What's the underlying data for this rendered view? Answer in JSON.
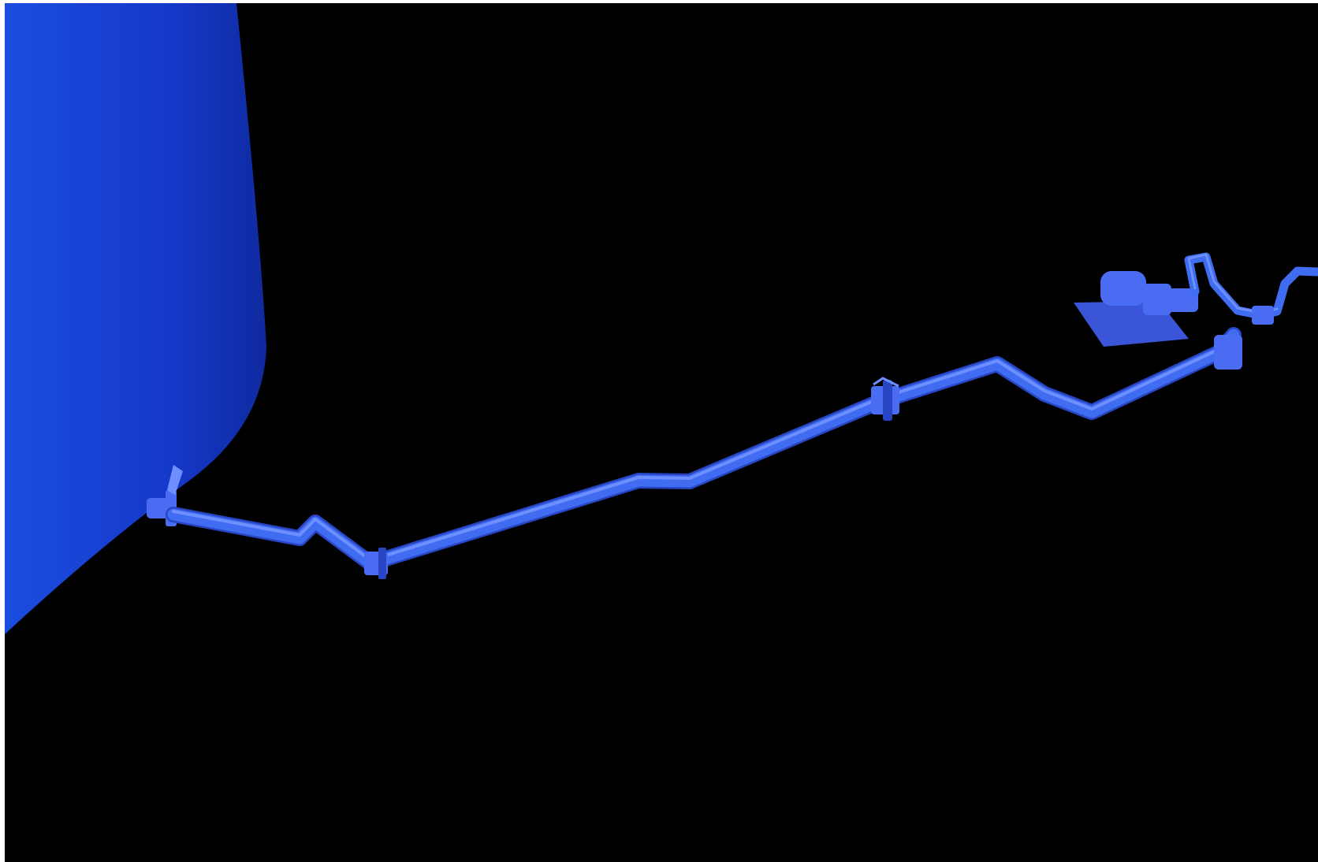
{
  "scene": {
    "background_color": "#000000",
    "frame_color": "#ffffff",
    "tank_colors": [
      "#1a4de0",
      "#1538c8",
      "#0f2aa0"
    ],
    "pipe_color": "#3f6cf0",
    "pipe_highlight_color": "#6d8fff",
    "pipe_shadow_color": "#2846c4",
    "equipment_color": "#4a6cf2",
    "equipment_base_color": "#3a55d8"
  }
}
